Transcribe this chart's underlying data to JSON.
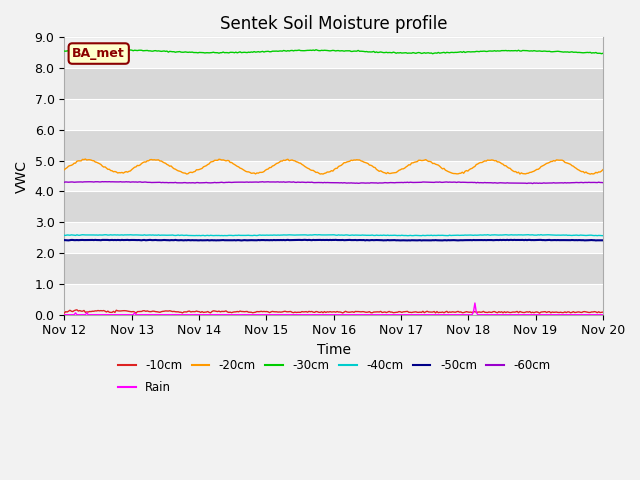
{
  "title": "Sentek Soil Moisture profile",
  "xlabel": "Time",
  "ylabel": "VWC",
  "ylim": [
    0.0,
    9.0
  ],
  "yticks": [
    0.0,
    1.0,
    2.0,
    3.0,
    4.0,
    5.0,
    6.0,
    7.0,
    8.0,
    9.0
  ],
  "x_tick_labels": [
    "Nov 12",
    "Nov 13",
    "Nov 14",
    "Nov 15",
    "Nov 16",
    "Nov 17",
    "Nov 18",
    "Nov 19",
    "Nov 20",
    "Nov 20"
  ],
  "site_label": "BA_met",
  "fig_facecolor": "#f2f2f2",
  "axes_facecolor": "#e8e8e8",
  "band_light": "#f0f0f0",
  "band_dark": "#d8d8d8",
  "colors": {
    "-10cm": "#dd2222",
    "-20cm": "#ff9900",
    "-30cm": "#00cc00",
    "-40cm": "#00cccc",
    "-50cm": "#000088",
    "-60cm": "#9900cc",
    "Rain": "#ff00ff"
  },
  "title_fontsize": 12,
  "label_fontsize": 10,
  "tick_fontsize": 9
}
